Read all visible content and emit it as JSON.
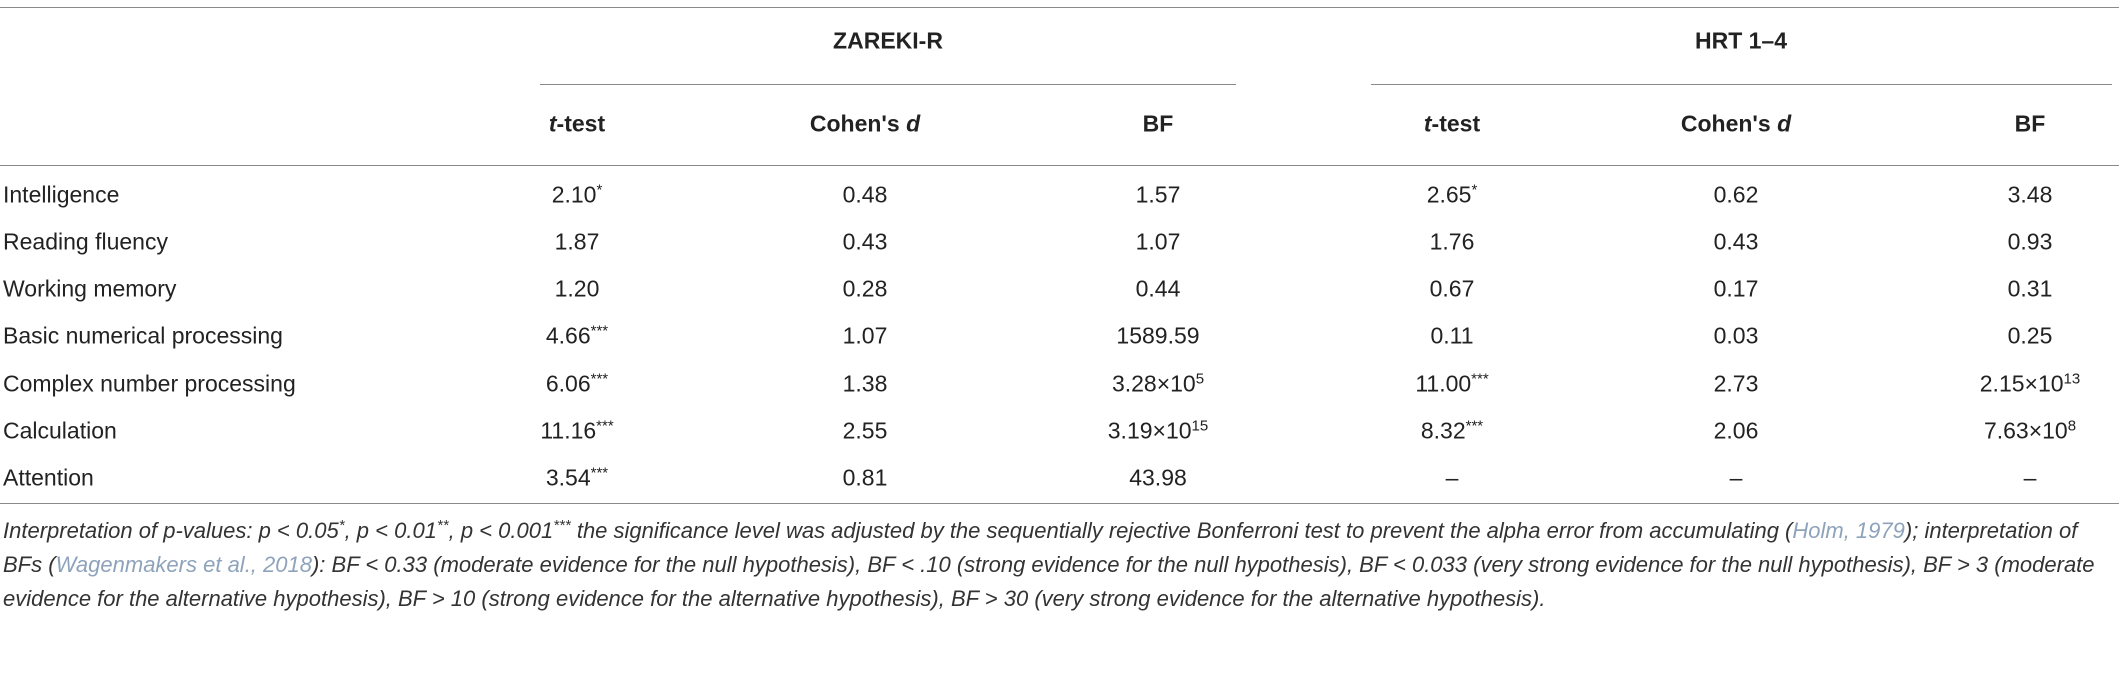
{
  "table": {
    "groups": [
      "ZAREKI-R",
      "HRT 1–4"
    ],
    "columns": [
      [
        {
          "i": "t"
        },
        {
          "r": "-test"
        }
      ],
      [
        {
          "r": "Cohen's "
        },
        {
          "i": "d"
        }
      ],
      "BF",
      [
        {
          "i": "t"
        },
        {
          "r": "-test"
        }
      ],
      [
        {
          "r": "Cohen's "
        },
        {
          "i": "d"
        }
      ],
      "BF"
    ],
    "rows": [
      [
        "Intelligence",
        [
          {
            "r": "2.10"
          },
          {
            "sup": "*"
          }
        ],
        "0.48",
        "1.57",
        [
          {
            "r": "2.65"
          },
          {
            "sup": "*"
          }
        ],
        "0.62",
        "3.48"
      ],
      [
        "Reading fluency",
        "1.87",
        "0.43",
        "1.07",
        "1.76",
        "0.43",
        "0.93"
      ],
      [
        "Working memory",
        "1.20",
        "0.28",
        "0.44",
        "0.67",
        "0.17",
        "0.31"
      ],
      [
        "Basic numerical processing",
        [
          {
            "r": "4.66"
          },
          {
            "sup": "***"
          }
        ],
        "1.07",
        "1589.59",
        "0.11",
        "0.03",
        "0.25"
      ],
      [
        "Complex number processing",
        [
          {
            "r": "6.06"
          },
          {
            "sup": "***"
          }
        ],
        "1.38",
        [
          {
            "r": "3.28×10"
          },
          {
            "sup": "5"
          }
        ],
        [
          {
            "r": "11.00"
          },
          {
            "sup": "***"
          }
        ],
        "2.73",
        [
          {
            "r": "2.15×10"
          },
          {
            "sup": "13"
          }
        ]
      ],
      [
        "Calculation",
        [
          {
            "r": "11.16"
          },
          {
            "sup": "***"
          }
        ],
        "2.55",
        [
          {
            "r": "3.19×10"
          },
          {
            "sup": "15"
          }
        ],
        [
          {
            "r": "8.32"
          },
          {
            "sup": "***"
          }
        ],
        "2.06",
        [
          {
            "r": "7.63×10"
          },
          {
            "sup": "8"
          }
        ]
      ],
      [
        "Attention",
        [
          {
            "r": "3.54"
          },
          {
            "sup": "***"
          }
        ],
        "0.81",
        "43.98",
        "–",
        "–",
        "–"
      ]
    ],
    "footnote": [
      {
        "r": "Interpretation of p-values: p < 0.05"
      },
      {
        "sup": "*"
      },
      {
        "r": ", p < 0.01"
      },
      {
        "sup": "**"
      },
      {
        "r": ", p < 0.001"
      },
      {
        "sup": "***"
      },
      {
        "r": " the significance level was adjusted by the sequentially rejective Bonferroni test to prevent the alpha error from accumulating ("
      },
      {
        "a": "Holm, 1979"
      },
      {
        "r": "); interpretation of BFs ("
      },
      {
        "a": "Wagenmakers et al., 2018"
      },
      {
        "r": "): BF < 0.33 (moderate evidence for the null hypothesis), BF < .10 (strong evidence for the null hypothesis), BF < 0.033 (very strong evidence for the null hypothesis), BF > 3 (moderate evidence for the alternative hypothesis), BF > 10 (strong evidence for the alternative hypothesis), BF > 30 (very strong evidence for the alternative hypothesis)."
      }
    ]
  }
}
